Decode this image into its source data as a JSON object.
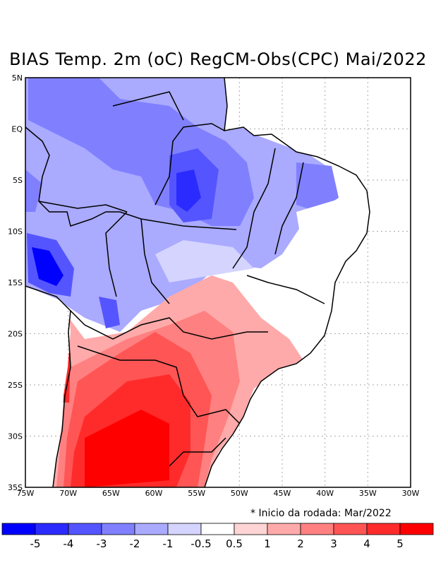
{
  "title": "BIAS Temp. 2m (oC) RegCM-Obs(CPC) Mai/2022",
  "note": "* Inicio da rodada: Mar/2022",
  "map": {
    "variable": "BIAS Temp. 2m (oC)",
    "lon_range": [
      -75,
      -30
    ],
    "lat_range": [
      -35,
      5
    ],
    "lon_labels": [
      "75W",
      "70W",
      "65W",
      "60W",
      "55W",
      "50W",
      "45W",
      "40W",
      "35W",
      "30W"
    ],
    "lat_labels": [
      "5N",
      "EQ",
      "5S",
      "10S",
      "15S",
      "20S",
      "25S",
      "30S",
      "35S"
    ]
  },
  "colorbar": {
    "levels": [
      "-5",
      "-4",
      "-3",
      "-2",
      "-1",
      "-0.5",
      "0.5",
      "1",
      "2",
      "3",
      "4",
      "5"
    ],
    "colors": [
      "#0000ff",
      "#2b2bff",
      "#5555ff",
      "#8080ff",
      "#aaaaff",
      "#d4d4ff",
      "#ffffff",
      "#ffd4d4",
      "#ffaaaa",
      "#ff8080",
      "#ff5555",
      "#ff2b2b",
      "#ff0000"
    ]
  }
}
